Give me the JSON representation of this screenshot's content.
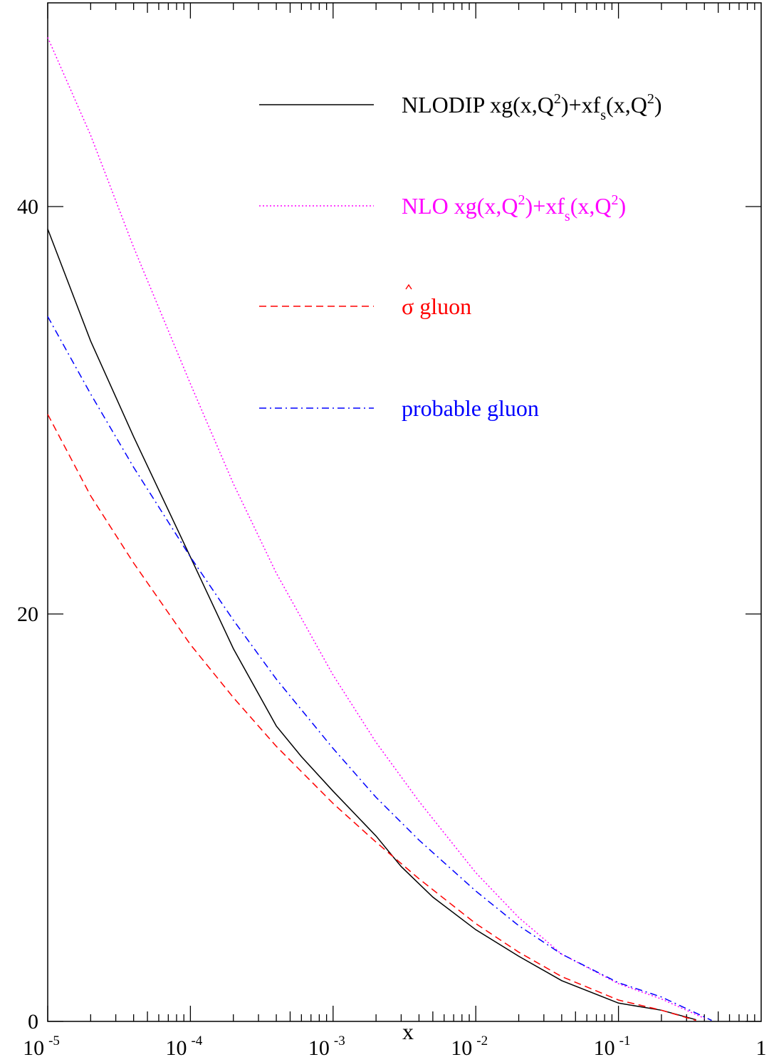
{
  "chart_data": {
    "type": "line",
    "title": "",
    "xlabel": "x",
    "ylabel": "",
    "xscale": "log",
    "xlim": [
      1e-05,
      1
    ],
    "ylim": [
      0,
      50
    ],
    "grid": false,
    "legend_position": "top-right",
    "x_ticks": [
      {
        "base": "10",
        "exp": "-5",
        "value": 1e-05
      },
      {
        "base": "10",
        "exp": "-4",
        "value": 0.0001
      },
      {
        "base": "10",
        "exp": "-3",
        "value": 0.001
      },
      {
        "base": "10",
        "exp": "-2",
        "value": 0.01
      },
      {
        "base": "10",
        "exp": "-1",
        "value": 0.1
      },
      {
        "base": "1",
        "exp": "",
        "value": 1
      }
    ],
    "y_ticks": [
      {
        "label": "0",
        "value": 0
      },
      {
        "label": "20",
        "value": 20
      },
      {
        "label": "40",
        "value": 40
      }
    ],
    "series": [
      {
        "name": "NLODIP xg(x,Q2)+xfs(x,Q2)",
        "legend_parts": [
          {
            "t": "NLODIP xg(x,Q",
            "s": ""
          },
          {
            "t": "2",
            "s": "sup"
          },
          {
            "t": ")+xf",
            "s": ""
          },
          {
            "t": "s",
            "s": "sub"
          },
          {
            "t": "(x,Q",
            "s": ""
          },
          {
            "t": "2",
            "s": "sup"
          },
          {
            "t": ")",
            "s": ""
          }
        ],
        "color": "#000000",
        "dash": "none",
        "x": [
          1e-05,
          2e-05,
          4e-05,
          0.0001,
          0.0002,
          0.0004,
          0.0006,
          0.001,
          0.002,
          0.003,
          0.005,
          0.01,
          0.02,
          0.04,
          0.1,
          0.2,
          0.35
        ],
        "y": [
          38.9,
          33.4,
          28.7,
          22.8,
          18.3,
          14.5,
          13.0,
          11.3,
          9.1,
          7.6,
          6.1,
          4.5,
          3.2,
          2.0,
          0.9,
          0.55,
          0.08
        ]
      },
      {
        "name": "NLO xg(x,Q2)+xfs(x,Q2)",
        "legend_parts": [
          {
            "t": "NLO xg(x,Q",
            "s": ""
          },
          {
            "t": "2",
            "s": "sup"
          },
          {
            "t": ")+xf",
            "s": ""
          },
          {
            "t": "s",
            "s": "sub"
          },
          {
            "t": "(x,Q",
            "s": ""
          },
          {
            "t": "2",
            "s": "sup"
          },
          {
            "t": ")",
            "s": ""
          }
        ],
        "color": "#ff00ff",
        "dash": "2,3",
        "x": [
          1e-05,
          2e-05,
          4e-05,
          0.0001,
          0.0002,
          0.0004,
          0.001,
          0.002,
          0.004,
          0.01,
          0.02,
          0.04,
          0.1,
          0.2,
          0.4
        ],
        "y": [
          48.3,
          43.5,
          38.0,
          31.3,
          26.4,
          22.0,
          17.0,
          13.7,
          10.8,
          7.3,
          5.1,
          3.3,
          1.85,
          1.1,
          0.15
        ]
      },
      {
        "name": "σ gluon",
        "legend_parts": [
          {
            "t": "σ",
            "s": "hat"
          },
          {
            "t": " gluon",
            "s": ""
          }
        ],
        "color": "#ff0000",
        "dash": "10,6",
        "x": [
          1e-05,
          2e-05,
          4e-05,
          0.0001,
          0.0002,
          0.0004,
          0.001,
          0.002,
          0.004,
          0.01,
          0.02,
          0.04,
          0.1,
          0.2,
          0.35
        ],
        "y": [
          29.8,
          25.8,
          22.5,
          18.5,
          15.9,
          13.5,
          10.7,
          8.8,
          7.0,
          4.8,
          3.4,
          2.2,
          1.05,
          0.55,
          0.05
        ]
      },
      {
        "name": "probable gluon",
        "legend_parts": [
          {
            "t": "probable gluon",
            "s": ""
          }
        ],
        "color": "#0000ff",
        "dash": "10,5,2,5",
        "x": [
          1e-05,
          2e-05,
          4e-05,
          0.0001,
          0.0002,
          0.0004,
          0.001,
          0.002,
          0.004,
          0.01,
          0.02,
          0.04,
          0.1,
          0.2,
          0.45
        ],
        "y": [
          34.6,
          30.8,
          27.2,
          22.8,
          19.7,
          16.8,
          13.4,
          11.0,
          8.9,
          6.4,
          4.7,
          3.3,
          1.9,
          1.2,
          0.05
        ]
      }
    ]
  }
}
